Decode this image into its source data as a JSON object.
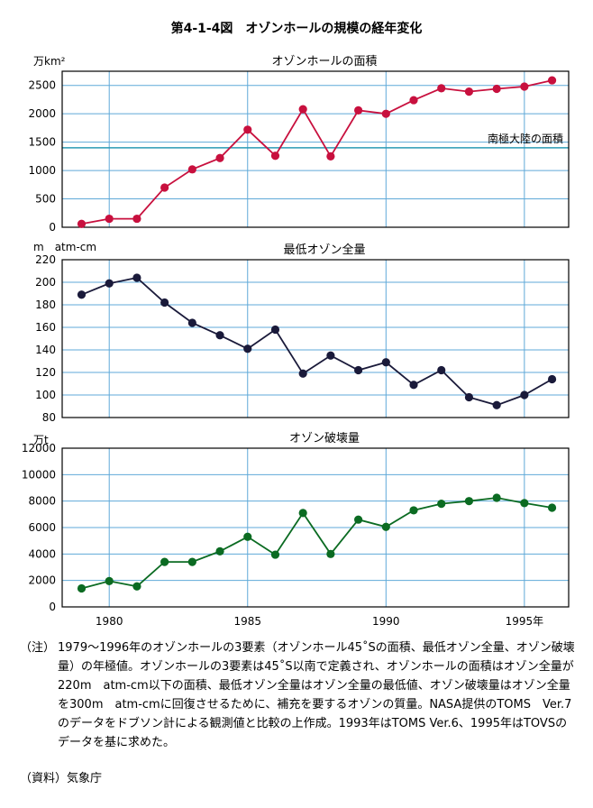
{
  "figure_title": "第4-1-4図　オゾンホールの規模の経年変化",
  "x_axis": {
    "min": 1978.3,
    "max": 1996.6,
    "ticks": [
      1980,
      1985,
      1990,
      1995
    ],
    "tick_labels": [
      "1980",
      "1985",
      "1990",
      "1995年"
    ]
  },
  "colors": {
    "area": "#c8103e",
    "ozone": "#1a1a3a",
    "destruction": "#0b6b22",
    "grid": "#5fa9d8",
    "reference": "#2b9bb5"
  },
  "chart_data": [
    {
      "type": "line",
      "title": "オゾンホールの面積",
      "ylabel": "万km²",
      "ylim": [
        0,
        2750
      ],
      "yticks": [
        0,
        500,
        1000,
        1500,
        2000,
        2500
      ],
      "x": [
        1979,
        1980,
        1981,
        1982,
        1983,
        1984,
        1985,
        1986,
        1987,
        1988,
        1989,
        1990,
        1991,
        1992,
        1993,
        1994,
        1995,
        1996
      ],
      "series": [
        {
          "values": [
            60,
            150,
            150,
            700,
            1020,
            1220,
            1720,
            1260,
            2080,
            1250,
            2060,
            2000,
            2240,
            2450,
            2390,
            2440,
            2480,
            2590
          ]
        }
      ],
      "reference_line": {
        "value": 1400,
        "label": "南極大陸の面積"
      }
    },
    {
      "type": "line",
      "title": "最低オゾン全量",
      "ylabel": "m　atm-cm",
      "ylim": [
        80,
        220
      ],
      "yticks": [
        80,
        100,
        120,
        140,
        160,
        180,
        200,
        220
      ],
      "x": [
        1979,
        1980,
        1981,
        1982,
        1983,
        1984,
        1985,
        1986,
        1987,
        1988,
        1989,
        1990,
        1991,
        1992,
        1993,
        1994,
        1995,
        1996
      ],
      "series": [
        {
          "values": [
            189,
            199,
            204,
            182,
            164,
            153,
            141,
            158,
            119,
            135,
            122,
            129,
            109,
            122,
            98,
            91,
            100,
            114
          ]
        }
      ]
    },
    {
      "type": "line",
      "title": "オゾン破壊量",
      "ylabel": "万t",
      "ylim": [
        0,
        12000
      ],
      "yticks": [
        0,
        2000,
        4000,
        6000,
        8000,
        10000,
        12000
      ],
      "x": [
        1979,
        1980,
        1981,
        1982,
        1983,
        1984,
        1985,
        1986,
        1987,
        1988,
        1989,
        1990,
        1991,
        1992,
        1993,
        1994,
        1995,
        1996
      ],
      "series": [
        {
          "values": [
            1400,
            1950,
            1550,
            3400,
            3400,
            4200,
            5300,
            3950,
            7100,
            4000,
            6600,
            6050,
            7300,
            7800,
            8000,
            8250,
            7850,
            7500
          ]
        }
      ]
    }
  ],
  "note": {
    "label": "（注）",
    "text": "1979～1996年のオゾンホールの3要素（オゾンホール45˚Sの面積、最低オゾン全量、オゾン破壊量）の年極値。オゾンホールの3要素は45˚S以南で定義され、オゾンホールの面積はオゾン全量が220m　atm-cm以下の面積、最低オゾン全量はオゾン全量の最低値、オゾン破壊量はオゾン全量を300m　atm-cmに回復させるために、補充を要するオゾンの質量。NASA提供のTOMS　Ver.7のデータをドブソン計による観測値と比較の上作成。1993年はTOMS Ver.6、1995年はTOVSのデータを基に求めた。"
  },
  "source": "（資料）気象庁"
}
